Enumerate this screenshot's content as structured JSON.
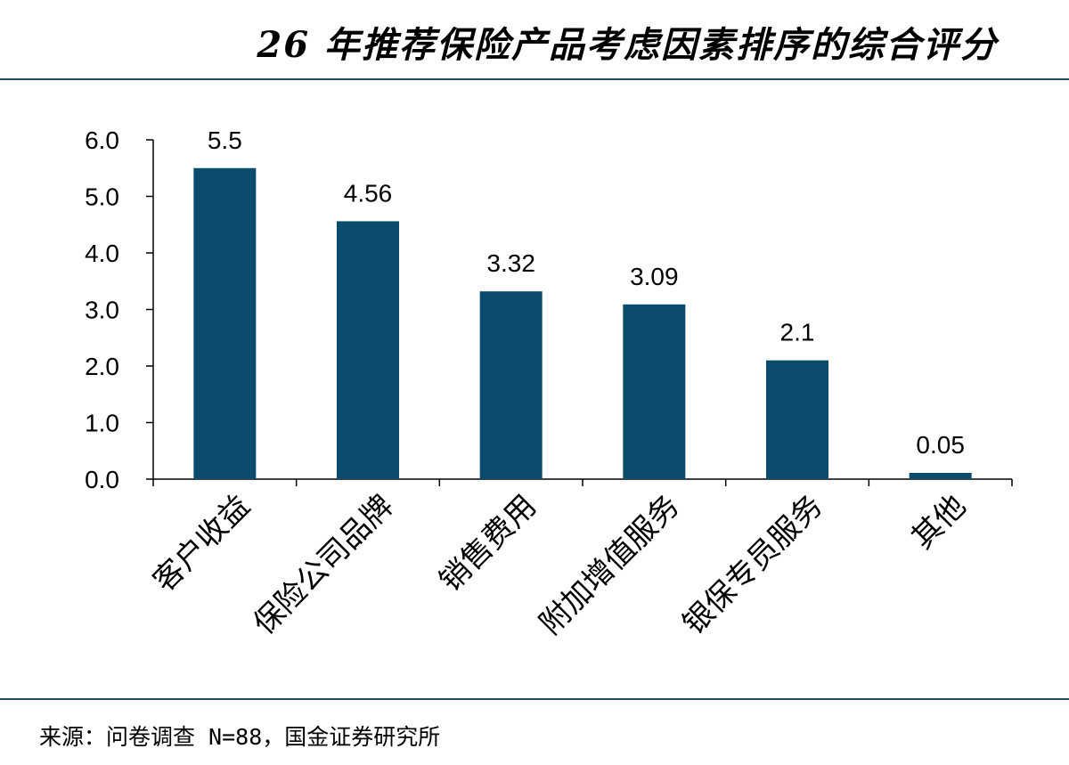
{
  "chart_data": {
    "type": "bar",
    "title": "26 年推荐保险产品考虑因素排序的综合评分",
    "categories": [
      "客户收益",
      "保险公司品牌",
      "销售费用",
      "附加增值服务",
      "银保专员服务",
      "其他"
    ],
    "values": [
      5.5,
      4.56,
      3.32,
      3.09,
      2.1,
      0.05
    ],
    "data_labels": [
      "5.5",
      "4.56",
      "3.32",
      "3.09",
      "2.1",
      "0.05"
    ],
    "yticks": [
      "0.0",
      "1.0",
      "2.0",
      "3.0",
      "4.0",
      "5.0",
      "6.0"
    ],
    "ylim": [
      0,
      6
    ],
    "xlabel": "",
    "ylabel": "",
    "grid": false,
    "bar_color": "#0b4c6d"
  },
  "source": "来源：问卷调查 N=88，国金证券研究所"
}
